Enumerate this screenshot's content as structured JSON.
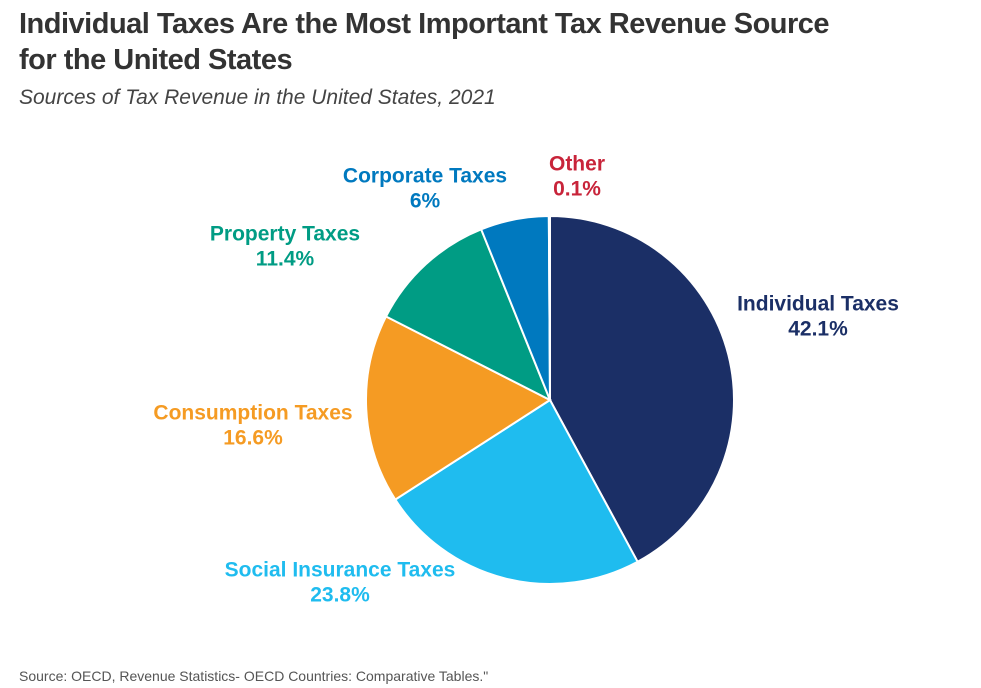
{
  "chart_data": {
    "type": "pie",
    "title": [
      "Individual Taxes Are the Most Important Tax Revenue Source",
      "for the United States"
    ],
    "subtitle": "Sources of Tax Revenue in the United States, 2021",
    "source": "Source: OECD, Revenue Statistics- OECD Countries: Comparative Tables.\"",
    "categories": [
      "Individual Taxes",
      "Social Insurance Taxes",
      "Consumption Taxes",
      "Property Taxes",
      "Corporate Taxes",
      "Other"
    ],
    "values": [
      42.1,
      23.8,
      16.6,
      11.4,
      6,
      0.1
    ],
    "value_labels": [
      "42.1%",
      "23.8%",
      "16.6%",
      "11.4%",
      "6%",
      "0.1%"
    ],
    "colors": [
      "#1b2f66",
      "#1fbcef",
      "#f59b23",
      "#009c84",
      "#0079bf",
      "#c8243a"
    ]
  }
}
